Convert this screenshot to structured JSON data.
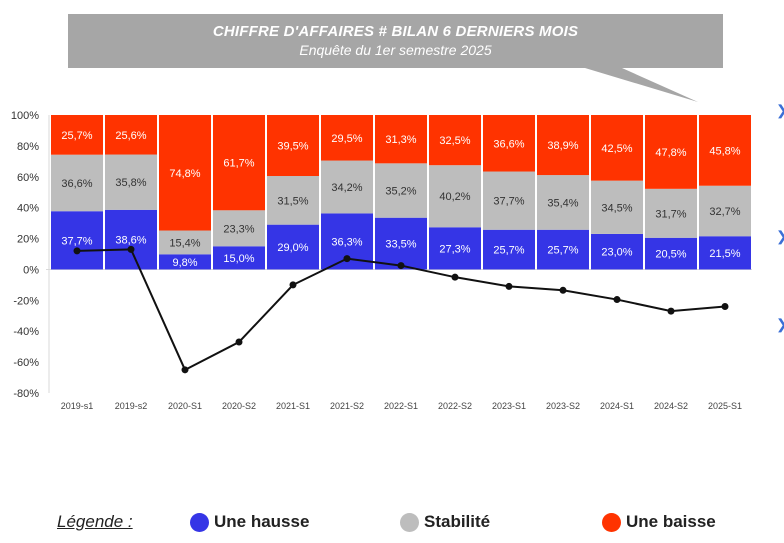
{
  "title": "CHIFFRE D'AFFAIRES # BILAN 6 DERNIERS MOIS",
  "subtitle": "Enquête du 1er semestre 2025",
  "colors": {
    "hausse": "#3535e6",
    "stabilite": "#bdbdbd",
    "baisse": "#ff3300",
    "line": "#111111",
    "callout": "#a6a6a6"
  },
  "chart_data": {
    "type": "bar",
    "stacked": true,
    "title": "CHIFFRE D'AFFAIRES # BILAN 6 DERNIERS MOIS",
    "subtitle": "Enquête du 1er semestre 2025",
    "categories": [
      "2019-s1",
      "2019-s2",
      "2020-S1",
      "2020-S2",
      "2021-S1",
      "2021-S2",
      "2022-S1",
      "2022-S2",
      "2023-S1",
      "2023-S2",
      "2024-S1",
      "2024-S2",
      "2025-S1"
    ],
    "y_ticks": [
      "100%",
      "80%",
      "60%",
      "40%",
      "20%",
      "0%",
      "-20%",
      "-40%",
      "-60%",
      "-80%"
    ],
    "ylim": [
      -80,
      100
    ],
    "series": [
      {
        "name": "Une hausse",
        "color": "#3535e6",
        "values": [
          37.7,
          38.6,
          9.8,
          15.0,
          29.0,
          36.3,
          33.5,
          27.3,
          25.7,
          25.7,
          23.0,
          20.5,
          21.5
        ],
        "labels": [
          "37,7%",
          "38,6%",
          "9,8%",
          "15,0%",
          "29,0%",
          "36,3%",
          "33,5%",
          "27,3%",
          "25,7%",
          "25,7%",
          "23,0%",
          "20,5%",
          "21,5%"
        ]
      },
      {
        "name": "Stabilité",
        "color": "#bdbdbd",
        "values": [
          36.6,
          35.8,
          15.4,
          23.3,
          31.5,
          34.2,
          35.2,
          40.2,
          37.7,
          35.4,
          34.5,
          31.7,
          32.7
        ],
        "labels": [
          "36,6%",
          "35,8%",
          "15,4%",
          "23,3%",
          "31,5%",
          "34,2%",
          "35,2%",
          "40,2%",
          "37,7%",
          "35,4%",
          "34,5%",
          "31,7%",
          "32,7%"
        ]
      },
      {
        "name": "Une baisse",
        "color": "#ff3300",
        "values": [
          25.7,
          25.6,
          74.8,
          61.7,
          39.5,
          29.5,
          31.3,
          32.5,
          36.6,
          38.9,
          42.5,
          47.8,
          45.8
        ],
        "labels": [
          "25,7%",
          "25,6%",
          "74,8%",
          "61,7%",
          "39,5%",
          "29,5%",
          "31,3%",
          "32,5%",
          "36,6%",
          "38,9%",
          "42,5%",
          "47,8%",
          "45,8%"
        ]
      }
    ],
    "line": {
      "type": "line",
      "color": "#111111",
      "values": [
        12,
        13,
        -65,
        -47,
        -10,
        7,
        2.5,
        -5,
        -11,
        -13.5,
        -19.5,
        -27,
        -24
      ]
    },
    "legend_position": "bottom",
    "grid": false
  },
  "legend": {
    "title": "Légende :",
    "items": [
      {
        "label": "Une hausse",
        "color": "#3535e6"
      },
      {
        "label": "Stabilité",
        "color": "#bdbdbd"
      },
      {
        "label": "Une baisse",
        "color": "#ff3300"
      }
    ]
  }
}
